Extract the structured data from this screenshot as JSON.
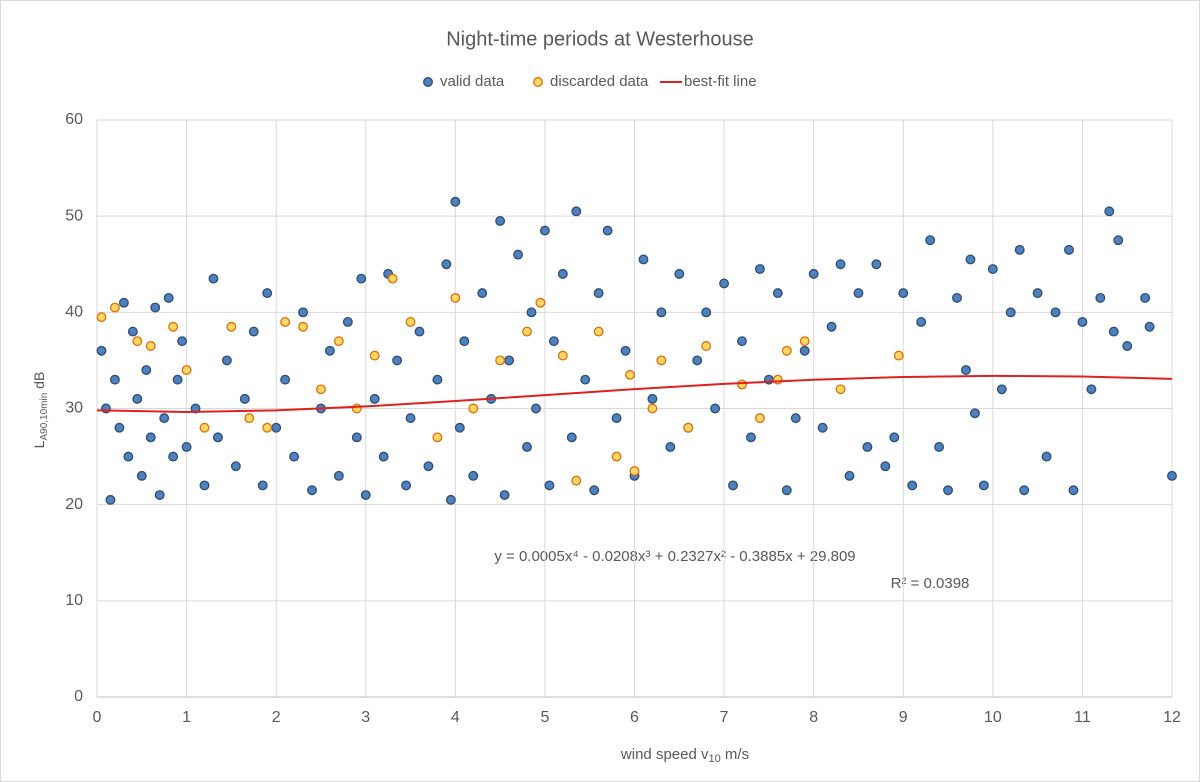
{
  "chart_data": {
    "type": "scatter",
    "title": "Night-time periods at Westerhouse",
    "x_label": {
      "main": "wind speed v",
      "sub": "10",
      "unit": " m/s"
    },
    "y_label": {
      "main": "L",
      "sub": "A90,10min",
      "unit": " dB"
    },
    "equation": "y = 0.0005x⁴ - 0.0208x³ + 0.2327x² - 0.3885x + 29.809",
    "r_squared": "R² = 0.0398",
    "xlim": [
      0,
      12
    ],
    "xticks": [
      0,
      1,
      2,
      3,
      4,
      5,
      6,
      7,
      8,
      9,
      10,
      11,
      12
    ],
    "ylim": [
      0,
      60
    ],
    "yticks": [
      0,
      10,
      20,
      30,
      40,
      50,
      60
    ],
    "grid": true,
    "legend": "top",
    "series": [
      {
        "name": "valid data",
        "type": "scatter",
        "color": "#4f81bd",
        "edge": "#2c4d75",
        "x": [
          0.05,
          0.1,
          0.15,
          0.2,
          0.25,
          0.3,
          0.35,
          0.4,
          0.45,
          0.5,
          0.55,
          0.6,
          0.65,
          0.7,
          0.75,
          0.8,
          0.85,
          0.9,
          0.95,
          1.0,
          1.1,
          1.2,
          1.3,
          1.35,
          1.45,
          1.55,
          1.65,
          1.75,
          1.85,
          1.9,
          2.0,
          2.1,
          2.2,
          2.3,
          2.4,
          2.5,
          2.6,
          2.7,
          2.8,
          2.9,
          2.95,
          3.0,
          3.1,
          3.2,
          3.25,
          3.35,
          3.45,
          3.5,
          3.6,
          3.7,
          3.8,
          3.9,
          3.95,
          4.0,
          4.05,
          4.1,
          4.2,
          4.3,
          4.4,
          4.5,
          4.55,
          4.6,
          4.7,
          4.8,
          4.85,
          4.9,
          5.0,
          5.05,
          5.1,
          5.2,
          5.3,
          5.35,
          5.45,
          5.55,
          5.6,
          5.7,
          5.8,
          5.9,
          6.0,
          6.1,
          6.2,
          6.3,
          6.4,
          6.5,
          6.6,
          6.7,
          6.8,
          6.9,
          7.0,
          7.1,
          7.2,
          7.3,
          7.4,
          7.5,
          7.6,
          7.7,
          7.8,
          7.9,
          8.0,
          8.1,
          8.2,
          8.3,
          8.4,
          8.5,
          8.6,
          8.7,
          8.8,
          8.9,
          9.0,
          9.1,
          9.2,
          9.3,
          9.4,
          9.5,
          9.6,
          9.7,
          9.75,
          9.8,
          9.9,
          10.0,
          10.1,
          10.2,
          10.3,
          10.35,
          10.5,
          10.6,
          10.7,
          10.85,
          10.9,
          11.0,
          11.1,
          11.2,
          11.3,
          11.35,
          11.4,
          11.5,
          11.7,
          11.75,
          12.0
        ],
        "values": [
          36,
          30,
          20.5,
          33,
          28,
          41,
          25,
          38,
          31,
          23,
          34,
          27,
          40.5,
          21,
          29,
          41.5,
          25,
          33,
          37,
          26,
          30,
          22,
          43.5,
          27,
          35,
          24,
          31,
          38,
          22,
          42,
          28,
          33,
          25,
          40,
          21.5,
          30,
          36,
          23,
          39,
          27,
          43.5,
          21,
          31,
          25,
          44,
          35,
          22,
          29,
          38,
          24,
          33,
          45,
          20.5,
          51.5,
          28,
          37,
          23,
          42,
          31,
          49.5,
          21,
          35,
          46,
          26,
          40,
          30,
          48.5,
          22,
          37,
          44,
          27,
          50.5,
          33,
          21.5,
          42,
          48.5,
          29,
          36,
          23,
          45.5,
          31,
          40,
          26,
          44,
          28,
          35,
          40,
          30,
          43,
          22,
          37,
          27,
          44.5,
          33,
          42,
          21.5,
          29,
          36,
          44,
          28,
          38.5,
          45,
          23,
          42,
          26,
          45,
          24,
          27,
          42,
          22,
          39,
          47.5,
          26,
          21.5,
          41.5,
          34,
          45.5,
          29.5,
          22,
          44.5,
          32,
          40,
          46.5,
          21.5,
          42,
          25,
          40,
          46.5,
          21.5,
          39,
          32,
          41.5,
          50.5,
          38,
          47.5,
          36.5,
          41.5,
          38.5,
          23
        ]
      },
      {
        "name": "discarded data",
        "type": "scatter",
        "color": "#ffd966",
        "edge": "#e46c0a",
        "x": [
          0.05,
          0.2,
          0.45,
          0.6,
          0.85,
          1.0,
          1.2,
          1.5,
          1.7,
          1.9,
          2.1,
          2.3,
          2.5,
          2.7,
          2.9,
          3.1,
          3.3,
          3.5,
          3.8,
          4.0,
          4.2,
          4.5,
          4.8,
          4.95,
          5.2,
          5.35,
          5.6,
          5.8,
          5.95,
          6.0,
          6.2,
          6.3,
          6.6,
          6.8,
          7.2,
          7.4,
          7.6,
          7.7,
          7.9,
          8.3,
          8.95
        ],
        "values": [
          39.5,
          40.5,
          37,
          36.5,
          38.5,
          34,
          28,
          38.5,
          29,
          28,
          39,
          38.5,
          32,
          37,
          30,
          35.5,
          43.5,
          39,
          27,
          41.5,
          30,
          35,
          38,
          41,
          35.5,
          22.5,
          38,
          25,
          33.5,
          23.5,
          30,
          35,
          28,
          36.5,
          32.5,
          29,
          33,
          36,
          37,
          32,
          35.5
        ]
      },
      {
        "name": "best-fit line",
        "type": "line",
        "color": "#e02020",
        "x": [
          0,
          1,
          2,
          3,
          4,
          5,
          6,
          7,
          8,
          9,
          10,
          11,
          12
        ],
        "values": [
          29.809,
          29.633,
          29.804,
          30.217,
          30.775,
          31.397,
          32.01,
          32.558,
          32.992,
          33.279,
          33.394,
          33.328,
          33.081
        ]
      }
    ]
  }
}
